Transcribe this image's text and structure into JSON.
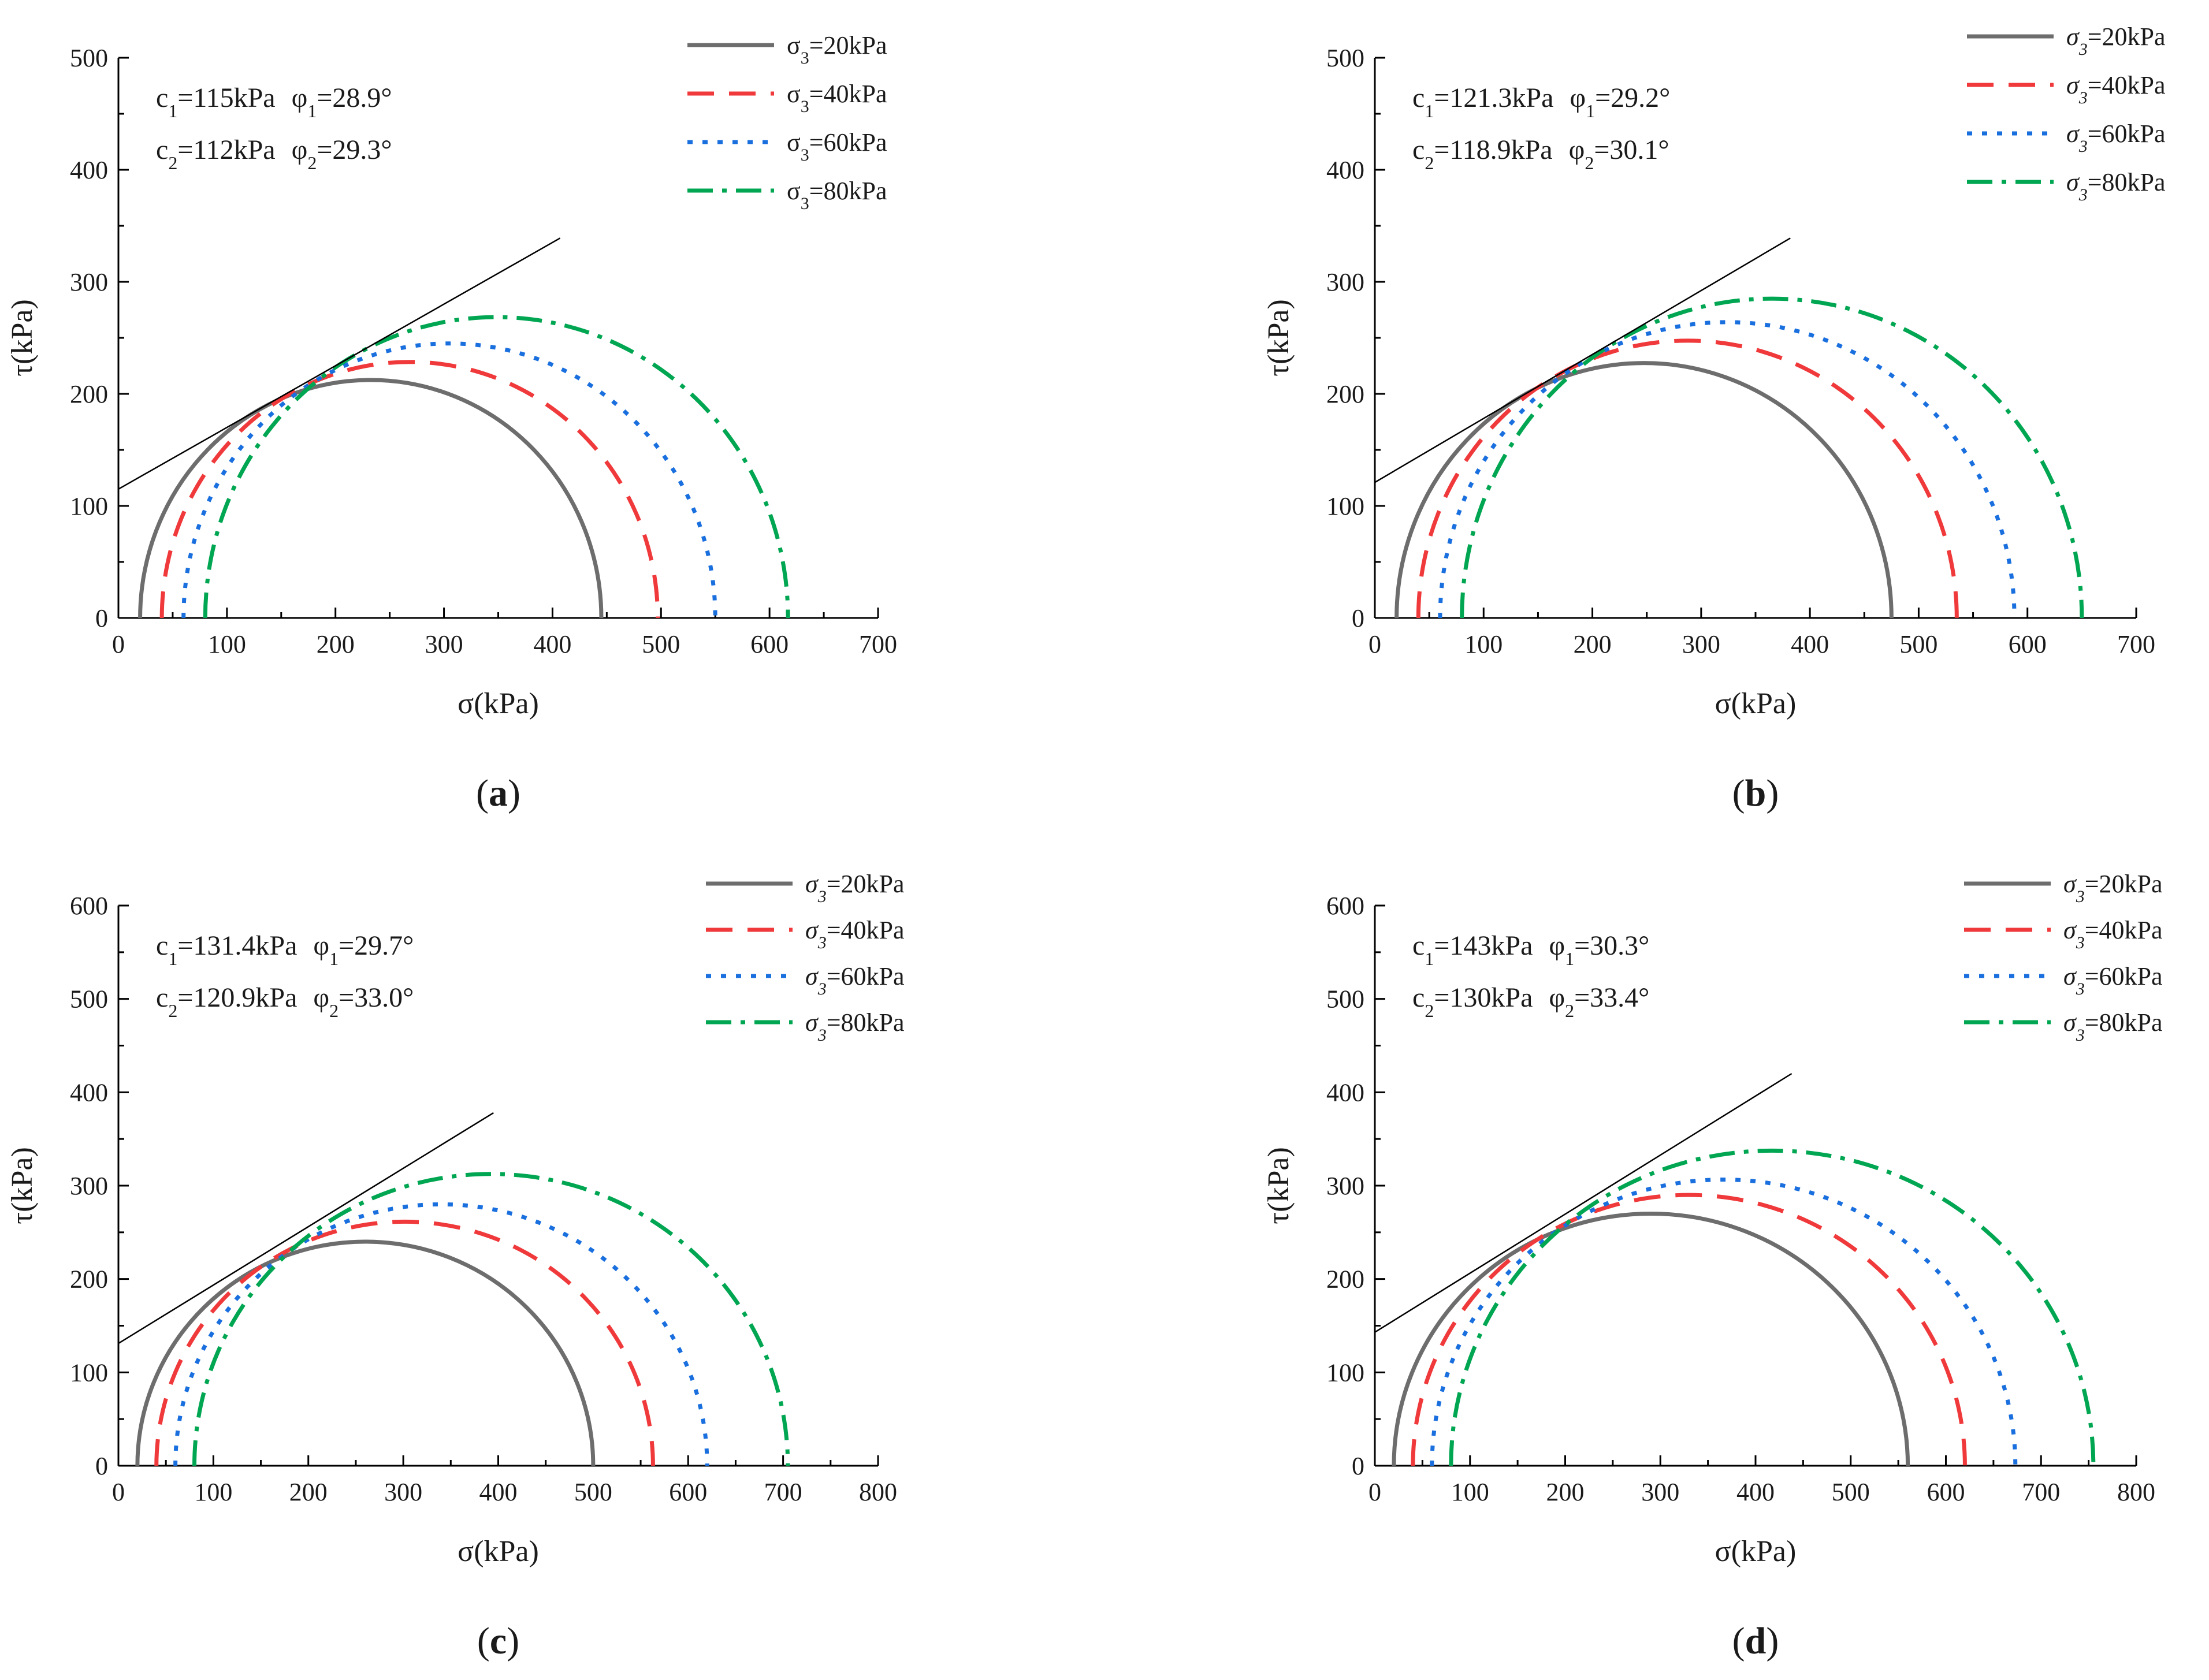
{
  "figure": {
    "panel_labels": [
      "(a)",
      "(b)",
      "(c)",
      "(d)"
    ]
  },
  "series_styles": {
    "s20": {
      "color": "#6d6d6d",
      "dash": "solid"
    },
    "s40": {
      "color": "#f0393b",
      "dash": "dash"
    },
    "s60": {
      "color": "#1a6fdf",
      "dash": "dot"
    },
    "s80": {
      "color": "#00a651",
      "dash": "dashdot"
    },
    "envelope": {
      "color": "#000000"
    }
  },
  "chart_data": [
    {
      "id": "a",
      "type": "line",
      "chart_kind": "mohr-circles",
      "label": "(a)",
      "xlabel": "σ(kPa)",
      "ylabel": "τ(kPa)",
      "xlim": [
        0,
        700
      ],
      "ylim": [
        0,
        500
      ],
      "xticks": [
        0,
        100,
        200,
        300,
        400,
        500,
        600,
        700
      ],
      "yticks": [
        0,
        100,
        200,
        300,
        400,
        500
      ],
      "annotations": [
        {
          "c_sym": "c",
          "c_sub": "1",
          "c_val": "=115kPa",
          "phi_sym": "φ",
          "phi_sub": "1",
          "phi_val": "=28.9°"
        },
        {
          "c_sym": "c",
          "c_sub": "2",
          "c_val": "=112kPa",
          "phi_sym": "φ",
          "phi_sub": "2",
          "phi_val": "=29.3°"
        }
      ],
      "legend_italic": false,
      "legend_position": "top-right",
      "series": [
        {
          "name": "σ3=20kPa",
          "sym": "σ",
          "sub": "3",
          "rest": "=20kPa",
          "style": "s20",
          "sigma3": 20,
          "sigma1": 445
        },
        {
          "name": "σ3=40kPa",
          "sym": "σ",
          "sub": "3",
          "rest": "=40kPa",
          "style": "s40",
          "sigma3": 40,
          "sigma1": 497
        },
        {
          "name": "σ3=60kPa",
          "sym": "σ",
          "sub": "3",
          "rest": "=60kPa",
          "style": "s60",
          "sigma3": 60,
          "sigma1": 550
        },
        {
          "name": "σ3=80kPa",
          "sym": "σ",
          "sub": "3",
          "rest": "=80kPa",
          "style": "s80",
          "sigma3": 80,
          "sigma1": 617
        }
      ],
      "envelope": {
        "x": [
          0,
          407
        ],
        "y": [
          115,
          339
        ]
      }
    },
    {
      "id": "b",
      "type": "line",
      "chart_kind": "mohr-circles",
      "label": "(b)",
      "xlabel": "σ(kPa)",
      "ylabel": "τ(kPa)",
      "xlim": [
        0,
        700
      ],
      "ylim": [
        0,
        500
      ],
      "xticks": [
        0,
        100,
        200,
        300,
        400,
        500,
        600,
        700
      ],
      "yticks": [
        0,
        100,
        200,
        300,
        400,
        500
      ],
      "annotations": [
        {
          "c_sym": "c",
          "c_sub": "1",
          "c_val": "=121.3kPa",
          "phi_sym": "φ",
          "phi_sub": "1",
          "phi_val": "=29.2°"
        },
        {
          "c_sym": "c",
          "c_sub": "2",
          "c_val": "=118.9kPa",
          "phi_sym": "φ",
          "phi_sub": "2",
          "phi_val": "=30.1°"
        }
      ],
      "legend_italic": true,
      "legend_position": "top-right",
      "series": [
        {
          "name": "σ3=20kPa",
          "sym": "σ",
          "sub": "3",
          "rest": "=20kPa",
          "style": "s20",
          "sigma3": 20,
          "sigma1": 475
        },
        {
          "name": "σ3=40kPa",
          "sym": "σ",
          "sub": "3",
          "rest": "=40kPa",
          "style": "s40",
          "sigma3": 40,
          "sigma1": 535
        },
        {
          "name": "σ3=60kPa",
          "sym": "σ",
          "sub": "3",
          "rest": "=60kPa",
          "style": "s60",
          "sigma3": 60,
          "sigma1": 588
        },
        {
          "name": "σ3=80kPa",
          "sym": "σ",
          "sub": "3",
          "rest": "=80kPa",
          "style": "s80",
          "sigma3": 80,
          "sigma1": 650
        }
      ],
      "envelope": {
        "x": [
          0,
          382
        ],
        "y": [
          121,
          339
        ]
      }
    },
    {
      "id": "c",
      "type": "line",
      "chart_kind": "mohr-circles",
      "label": "(c)",
      "xlabel": "σ(kPa)",
      "ylabel": "τ(kPa)",
      "xlim": [
        0,
        800
      ],
      "ylim": [
        0,
        600
      ],
      "xticks": [
        0,
        100,
        200,
        300,
        400,
        500,
        600,
        700,
        800
      ],
      "yticks": [
        0,
        100,
        200,
        300,
        400,
        500,
        600
      ],
      "annotations": [
        {
          "c_sym": "c",
          "c_sub": "1",
          "c_val": "=131.4kPa",
          "phi_sym": "φ",
          "phi_sub": "1",
          "phi_val": "=29.7°"
        },
        {
          "c_sym": "c",
          "c_sub": "2",
          "c_val": "=120.9kPa",
          "phi_sym": "φ",
          "phi_sub": "2",
          "phi_val": "=33.0°"
        }
      ],
      "legend_italic": true,
      "legend_position": "top-right",
      "series": [
        {
          "name": "σ3=20kPa",
          "sym": "σ",
          "sub": "3",
          "rest": "=20kPa",
          "style": "s20",
          "sigma3": 20,
          "sigma1": 500
        },
        {
          "name": "σ3=40kPa",
          "sym": "σ",
          "sub": "3",
          "rest": "=40kPa",
          "style": "s40",
          "sigma3": 40,
          "sigma1": 563
        },
        {
          "name": "σ3=60kPa",
          "sym": "σ",
          "sub": "3",
          "rest": "=60kPa",
          "style": "s60",
          "sigma3": 60,
          "sigma1": 620
        },
        {
          "name": "σ3=80kPa",
          "sym": "σ",
          "sub": "3",
          "rest": "=80kPa",
          "style": "s80",
          "sigma3": 80,
          "sigma1": 705
        }
      ],
      "envelope": {
        "x": [
          0,
          395
        ],
        "y": [
          131,
          378
        ]
      }
    },
    {
      "id": "d",
      "type": "line",
      "chart_kind": "mohr-circles",
      "label": "(d)",
      "xlabel": "σ(kPa)",
      "ylabel": "τ(kPa)",
      "xlim": [
        0,
        800
      ],
      "ylim": [
        0,
        600
      ],
      "xticks": [
        0,
        100,
        200,
        300,
        400,
        500,
        600,
        700,
        800
      ],
      "yticks": [
        0,
        100,
        200,
        300,
        400,
        500,
        600
      ],
      "annotations": [
        {
          "c_sym": "c",
          "c_sub": "1",
          "c_val": "=143kPa",
          "phi_sym": "φ",
          "phi_sub": "1",
          "phi_val": "=30.3°"
        },
        {
          "c_sym": "c",
          "c_sub": "2",
          "c_val": "=130kPa",
          "phi_sym": "φ",
          "phi_sub": "2",
          "phi_val": "=33.4°"
        }
      ],
      "legend_italic": true,
      "legend_position": "top-right",
      "series": [
        {
          "name": "σ3=20kPa",
          "sym": "σ",
          "sub": "3",
          "rest": "=20kPa",
          "style": "s20",
          "sigma3": 20,
          "sigma1": 560
        },
        {
          "name": "σ3=40kPa",
          "sym": "σ",
          "sub": "3",
          "rest": "=40kPa",
          "style": "s40",
          "sigma3": 40,
          "sigma1": 620
        },
        {
          "name": "σ3=60kPa",
          "sym": "σ",
          "sub": "3",
          "rest": "=60kPa",
          "style": "s60",
          "sigma3": 60,
          "sigma1": 673
        },
        {
          "name": "σ3=80kPa",
          "sym": "σ",
          "sub": "3",
          "rest": "=80kPa",
          "style": "s80",
          "sigma3": 80,
          "sigma1": 755
        }
      ],
      "envelope": {
        "x": [
          0,
          438
        ],
        "y": [
          143,
          420
        ]
      }
    }
  ]
}
